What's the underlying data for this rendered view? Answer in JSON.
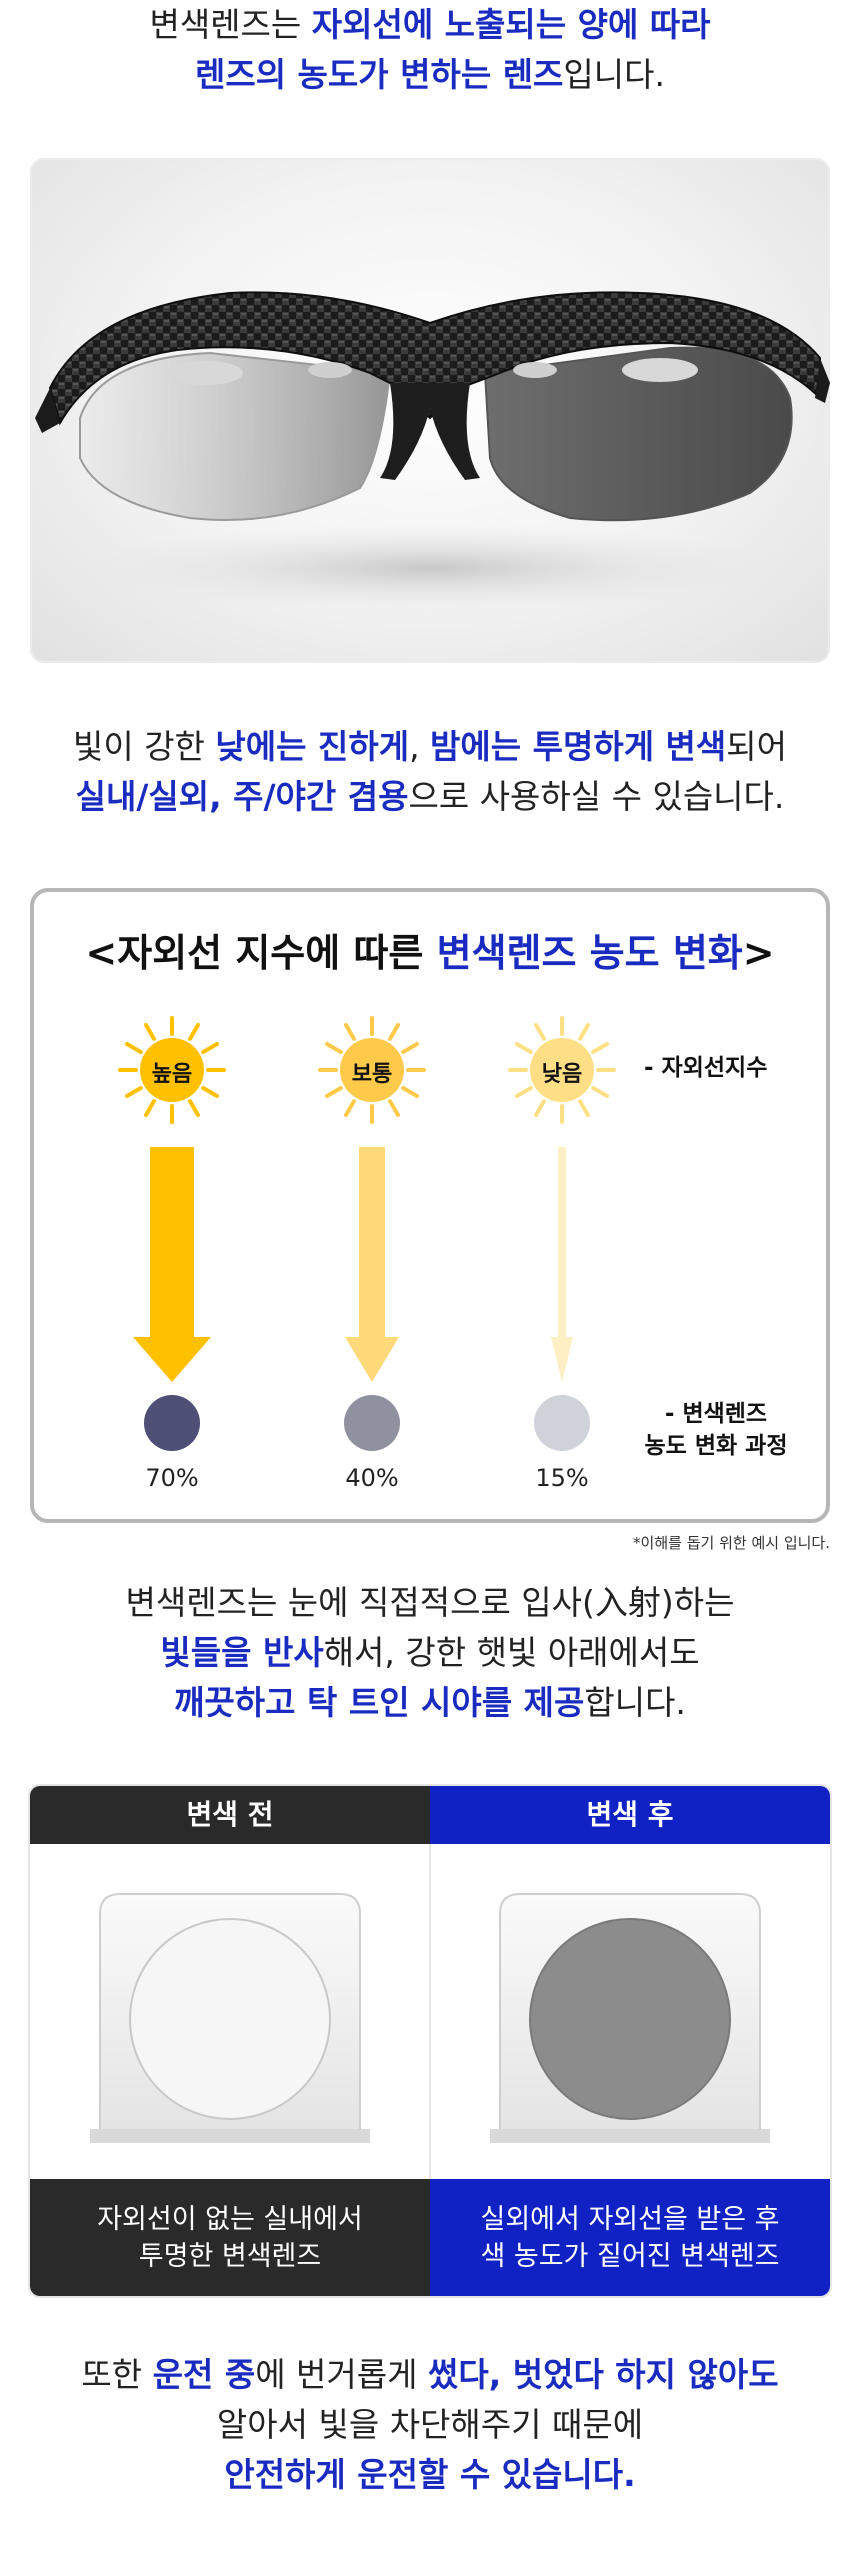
{
  "intro": {
    "line1_a": "변색렌즈는 ",
    "line1_b": "자외선에 노출되는 양에 따라",
    "line2_a": "렌즈의 농도가 변하는 렌즈",
    "line2_b": "입니다."
  },
  "day_night": {
    "line1_a": "빛이 강한 ",
    "line1_b": "낮에는 진하게",
    "line1_c": ", ",
    "line1_d": "밤에는 투명하게 변색",
    "line1_e": "되어",
    "line2_a": "실내/실외, 주/야간 겸용",
    "line2_b": "으로 사용하실 수 있습니다."
  },
  "chart": {
    "title_a": "<자외선 지수에 따른 ",
    "title_b": "변색렌즈 농도 변화",
    "title_c": ">",
    "uv_index_label": "- 자외선지수",
    "lens_label_line1": "- 변색렌즈",
    "lens_label_line2": "농도 변화 과정",
    "levels": [
      {
        "label": "높음",
        "percent": "70%",
        "arrow_color": "#ffc000",
        "circle_color": "#4d4f74",
        "sun_color": "#ffc000"
      },
      {
        "label": "보통",
        "percent": "40%",
        "arrow_color": "#ffd97a",
        "circle_color": "#90919f",
        "sun_color": "#ffc94a"
      },
      {
        "label": "낮음",
        "percent": "15%",
        "arrow_color": "#ffefc4",
        "circle_color": "#d0d2da",
        "sun_color": "#ffdf86"
      }
    ],
    "note": "*이해를 돕기 위한 예시 입니다."
  },
  "reflect": {
    "line1": "변색렌즈는 눈에 직접적으로 입사(入射)하는",
    "line2_a": "빛들을 반사",
    "line2_b": "해서, 강한 햇빛 아래에서도",
    "line3_a": "깨끗하고 탁 트인 시야를 제공",
    "line3_b": "합니다."
  },
  "compare": {
    "before": {
      "header": "변색 전",
      "caption_line1": "자외선이 없는 실내에서",
      "caption_line2": "투명한 변색렌즈",
      "header_color": "#2a2a2a"
    },
    "after": {
      "header": "변색 후",
      "caption_line1": "실외에서 자외선을 받은 후",
      "caption_line2": "색 농도가 짙어진 변색렌즈",
      "header_color": "#1122c4"
    }
  },
  "driving": {
    "line1_a": "또한 ",
    "line1_b": "운전 중",
    "line1_c": "에 번거롭게 ",
    "line1_d": "썼다, 벗었다 하지 않아도",
    "line2": "알아서 빛을 차단해주기 때문에",
    "line3": "안전하게 운전할 수 있습니다."
  },
  "accent_color": "#1a2bc0"
}
